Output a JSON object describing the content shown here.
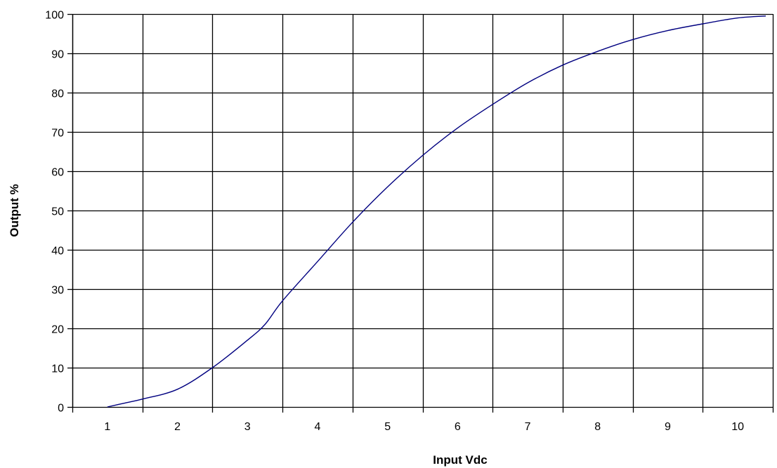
{
  "chart_data": {
    "type": "line",
    "title": "",
    "xlabel": "Input Vdc",
    "ylabel": "Output %",
    "xlim": [
      0.5,
      10.5
    ],
    "ylim": [
      0,
      100
    ],
    "x_ticks": [
      "1",
      "2",
      "3",
      "4",
      "5",
      "6",
      "7",
      "8",
      "9",
      "10"
    ],
    "y_ticks": [
      "0",
      "10",
      "20",
      "30",
      "40",
      "50",
      "60",
      "70",
      "80",
      "90",
      "100"
    ],
    "grid": true,
    "legend": "none",
    "series": [
      {
        "x": [
          1.0,
          1.25,
          1.5,
          2.0,
          2.5,
          3.0,
          3.25,
          3.5,
          4.0,
          4.5,
          5.0,
          5.5,
          6.0,
          6.5,
          7.0,
          7.5,
          8.0,
          8.5,
          9.0,
          9.5,
          10.0,
          10.4
        ],
        "y": [
          0,
          1,
          2,
          4.5,
          10,
          17,
          21,
          27,
          37,
          47,
          56,
          64,
          71,
          77,
          82.5,
          87,
          90.5,
          93.5,
          95.8,
          97.5,
          99,
          99.5
        ],
        "color": "#000080"
      }
    ]
  }
}
